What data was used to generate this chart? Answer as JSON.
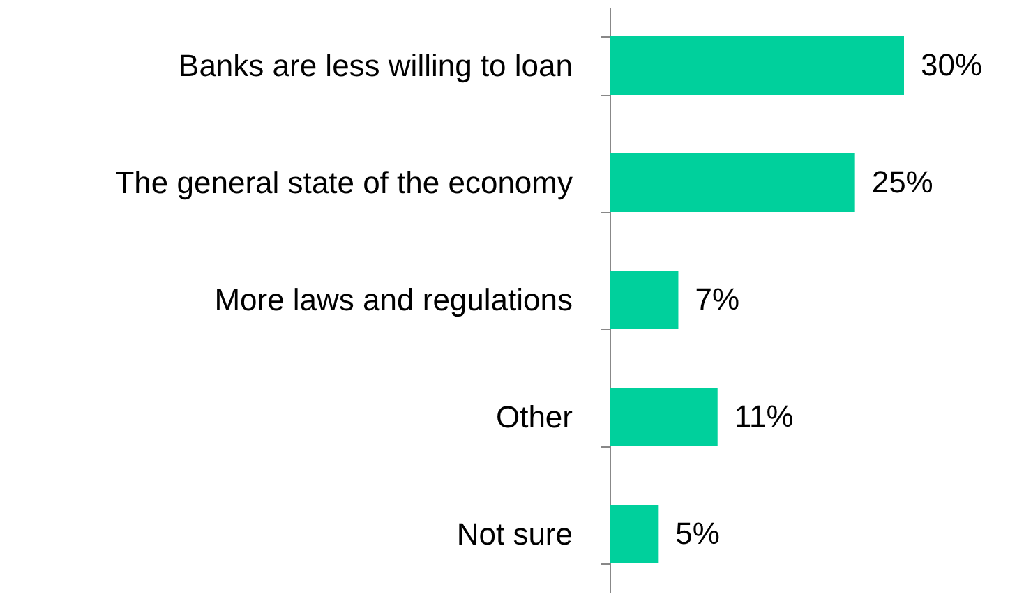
{
  "chart_data": {
    "type": "bar",
    "orientation": "horizontal",
    "categories": [
      "Banks are less willing to loan",
      "The general state of the economy",
      "More laws and regulations",
      "Other",
      "Not sure"
    ],
    "values": [
      30,
      25,
      7,
      11,
      5
    ],
    "value_labels": [
      "30%",
      "25%",
      "7%",
      "11%",
      "5%"
    ],
    "color": "#00d09c",
    "grid": false
  }
}
